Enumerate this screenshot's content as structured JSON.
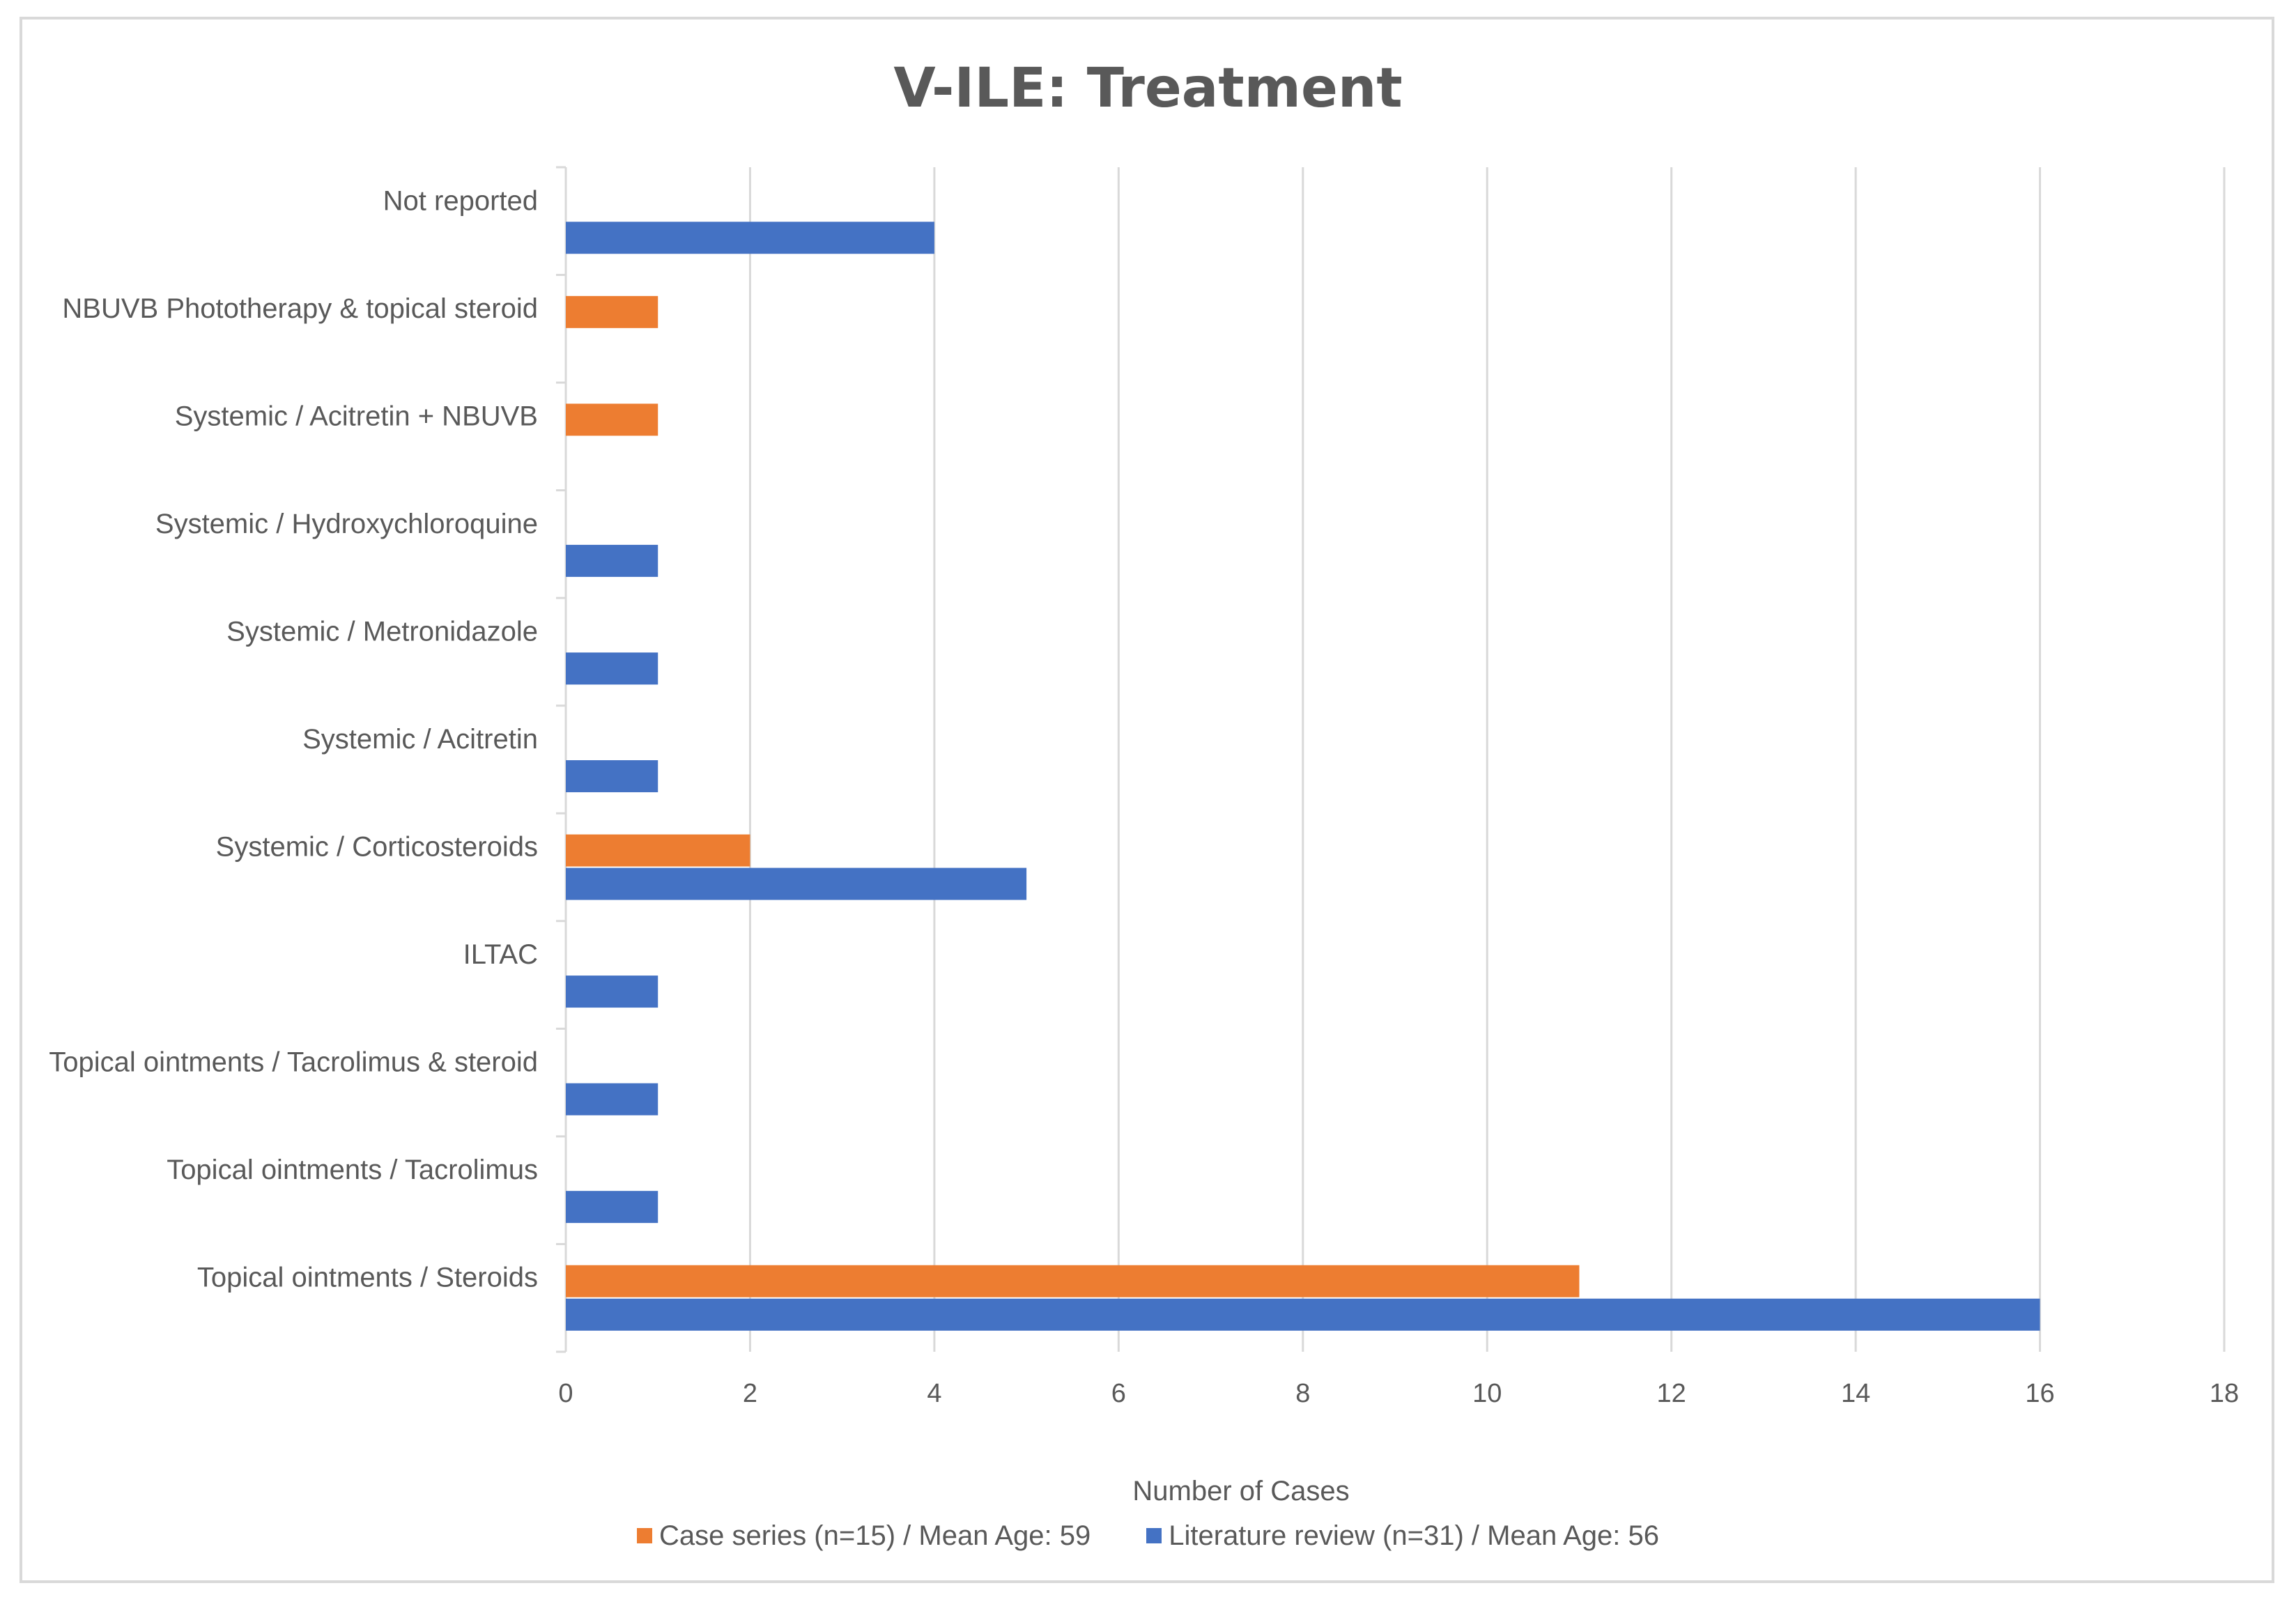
{
  "chart_data": {
    "type": "bar",
    "orientation": "horizontal",
    "title": "V-ILE: Treatment",
    "xlabel": "Number of Cases",
    "ylabel": "",
    "xlim": [
      0,
      18
    ],
    "xticks": [
      0,
      2,
      4,
      6,
      8,
      10,
      12,
      14,
      16,
      18
    ],
    "grid": "vertical",
    "legend_position": "bottom",
    "categories": [
      "Not reported",
      "NBUVB Phototherapy & topical steroid",
      "Systemic / Acitretin + NBUVB",
      "Systemic / Hydroxychloroquine",
      "Systemic / Metronidazole",
      "Systemic / Acitretin",
      "Systemic / Corticosteroids",
      "ILTAC",
      "Topical ointments / Tacrolimus & steroid",
      "Topical ointments / Tacrolimus",
      "Topical ointments / Steroids"
    ],
    "series": [
      {
        "name": "Case series (n=15) / Mean Age: 59",
        "color": "#ed7d31",
        "values": [
          0,
          1,
          1,
          0,
          0,
          0,
          2,
          0,
          0,
          0,
          11
        ]
      },
      {
        "name": "Literature review (n=31) / Mean Age: 56",
        "color": "#4472c4",
        "values": [
          4,
          0,
          0,
          1,
          1,
          1,
          5,
          1,
          1,
          1,
          16
        ]
      }
    ]
  }
}
